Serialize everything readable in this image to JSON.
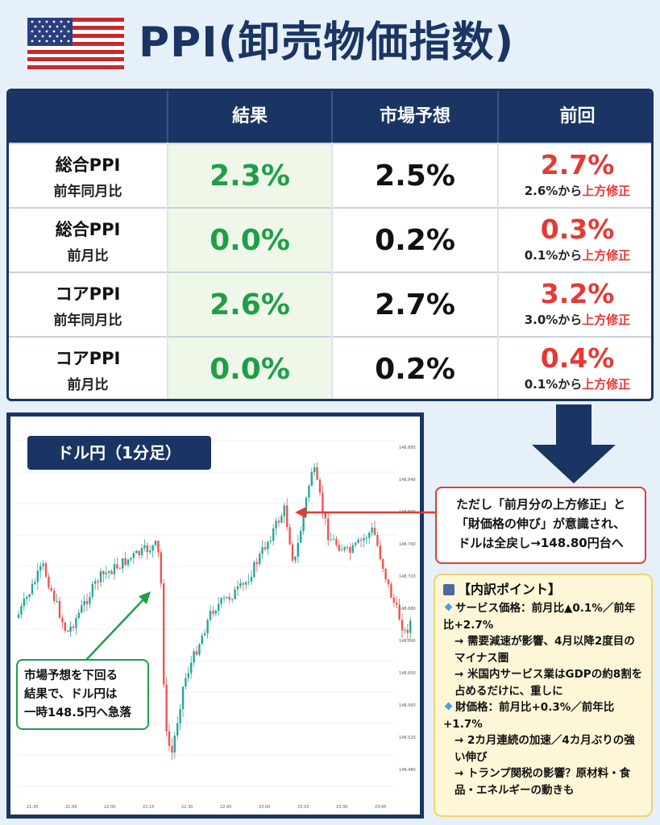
{
  "header": {
    "title": "PPI(卸売物価指数)"
  },
  "table": {
    "columns": [
      "結果",
      "市場予想",
      "前回"
    ],
    "rows": [
      {
        "label1": "総合PPI",
        "label2": "前年同月比",
        "result": "2.3%",
        "forecast": "2.5%",
        "previous": "2.7%",
        "prev_note": "2.6%から",
        "prev_note_red": "上方修正"
      },
      {
        "label1": "総合PPI",
        "label2": "前月比",
        "result": "0.0%",
        "forecast": "0.2%",
        "previous": "0.3%",
        "prev_note": "0.1%から",
        "prev_note_red": "上方修正"
      },
      {
        "label1": "コアPPI",
        "label2": "前年同月比",
        "result": "2.6%",
        "forecast": "2.7%",
        "previous": "3.2%",
        "prev_note": "3.0%から",
        "prev_note_red": "上方修正"
      },
      {
        "label1": "コアPPI",
        "label2": "前月比",
        "result": "0.0%",
        "forecast": "0.2%",
        "previous": "0.4%",
        "prev_note": "0.1%から",
        "prev_note_red": "上方修正"
      }
    ]
  },
  "chart": {
    "badge": "ドル円（1分足）",
    "y_ticks": [
      "148.880",
      "148.840",
      "148.800",
      "148.760",
      "148.720",
      "148.680",
      "148.640",
      "148.600",
      "148.560",
      "148.520",
      "148.480"
    ],
    "x_ticks": [
      "21:30",
      "21:45",
      "22:00",
      "22:15",
      "22:30",
      "22:45",
      "23:00",
      "23:15",
      "23:30",
      "23:45"
    ]
  },
  "callouts": {
    "red": [
      "ただし「前月分の上方修正」と",
      "「財価格の伸び」が意識され、",
      "ドルは全戻し→148.80円台へ"
    ],
    "green": [
      "市場予想を下回る",
      "結果で、ドル円は",
      "一時148.5円へ急落"
    ]
  },
  "points": {
    "title": "【内訳ポイント】",
    "lines": [
      {
        "type": "diamond",
        "text": "サービス価格：前月比▲0.1%／前年比+2.7%"
      },
      {
        "type": "sub",
        "text": "→ 需要減速が影響、4月以降2度目のマイナス圏"
      },
      {
        "type": "sub",
        "text": "→ 米国内サービス業はGDPの約8割を占めるだけに、重しに"
      },
      {
        "type": "diamond",
        "text": "財価格：前月比+0.3%／前年比+1.7%"
      },
      {
        "type": "sub",
        "text": "→ 2カ月連続の加速／4カ月ぶりの強い伸び"
      },
      {
        "type": "sub",
        "text": "→ トランプ関税の影響？原材料・食品・エネルギーの動きも"
      }
    ]
  },
  "colors": {
    "navy": "#1a3563",
    "green": "#1f9e4a",
    "red": "#e53935"
  }
}
